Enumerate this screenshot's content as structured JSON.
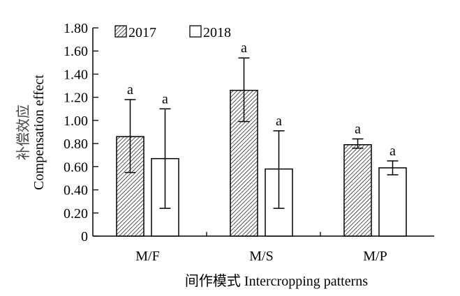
{
  "chart_data": {
    "type": "bar",
    "title": "",
    "xlabel": "间作模式 Intercropping patterns",
    "ylabel_cn": "补偿效应",
    "ylabel": "Compensation effect",
    "ylim": [
      0,
      1.8
    ],
    "yticks": [
      "0",
      "0.20",
      "0.40",
      "0.60",
      "0.80",
      "1.00",
      "1.20",
      "1.40",
      "1.60",
      "1.80"
    ],
    "categories": [
      "M/F",
      "M/S",
      "M/P"
    ],
    "legend_position": "top-left",
    "series": [
      {
        "name": "2017",
        "pattern": "hatched",
        "values": [
          0.86,
          1.26,
          0.79
        ],
        "err_high": [
          1.18,
          1.54,
          0.84
        ],
        "err_low": [
          0.55,
          0.99,
          0.76
        ],
        "labels": [
          "a",
          "a",
          "a"
        ]
      },
      {
        "name": "2018",
        "pattern": "open",
        "values": [
          0.67,
          0.58,
          0.59
        ],
        "err_high": [
          1.1,
          0.91,
          0.65
        ],
        "err_low": [
          0.24,
          0.24,
          0.53
        ],
        "labels": [
          "a",
          "a",
          "a"
        ]
      }
    ]
  }
}
